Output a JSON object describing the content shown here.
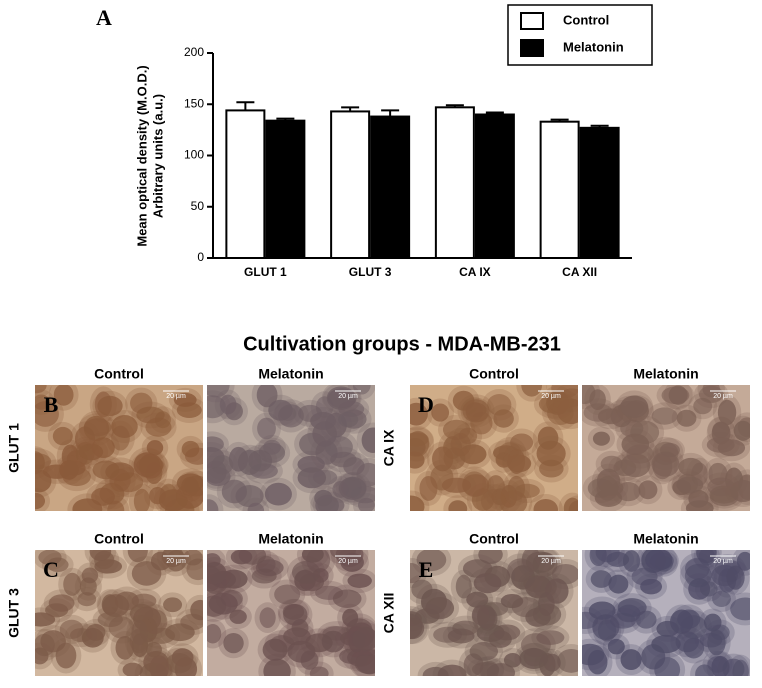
{
  "chart_data": {
    "type": "bar",
    "panel_label": "A",
    "y_label": [
      "Mean optical density (M.O.D.)",
      "Arbitrary units (a.u.)"
    ],
    "categories": [
      "GLUT 1",
      "GLUT 3",
      "CA IX",
      "CA XII"
    ],
    "series": [
      {
        "name": "Control",
        "color": "#ffffff",
        "values": [
          144,
          143,
          147,
          133
        ],
        "errors": [
          8,
          4,
          2,
          2
        ]
      },
      {
        "name": "Melatonin",
        "color": "#000000",
        "values": [
          134,
          138,
          140,
          127
        ],
        "errors": [
          2,
          6,
          2,
          2
        ]
      }
    ],
    "ylim": [
      0,
      200
    ],
    "yticks": [
      0,
      50,
      100,
      150,
      200
    ],
    "legend": "upper right"
  },
  "figure": {
    "title": "Cultivation groups - MDA-MB-231",
    "columns": [
      "Control",
      "Melatonin"
    ],
    "scale_bar": "20 µm",
    "panels": [
      {
        "label": "B",
        "row": "GLUT 1"
      },
      {
        "label": "C",
        "row": "GLUT 3"
      },
      {
        "label": "D",
        "row": "CA IX"
      },
      {
        "label": "E",
        "row": "CA XII"
      }
    ]
  }
}
